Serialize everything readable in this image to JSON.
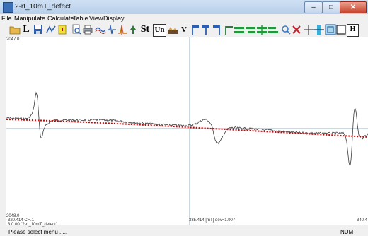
{
  "window": {
    "title": "2-rt_10mT_defect"
  },
  "menu": [
    "File",
    "Manipulate",
    "Calculate",
    "Table",
    "View",
    "Display"
  ],
  "toolbar": {
    "l_label": "L",
    "st_label": "St",
    "un_label": "Un",
    "v_label": "V",
    "h_label": "H"
  },
  "plot": {
    "y_top_label": "2047.0",
    "y_bottom_label": "2048.0",
    "x_left_label": "320.414  CH.1",
    "file_label": "3.0.00 \"2-rt_10mT_defect\"",
    "cursor_label": "335.414 [mT]  dev=1.907",
    "x_right_label": "340.4",
    "trace_color": "#3a3a3a",
    "fit_color": "#d00000",
    "cursor_color": "#8fb0cc"
  },
  "status": {
    "message": "Please select menu .....",
    "num": "NUM"
  }
}
